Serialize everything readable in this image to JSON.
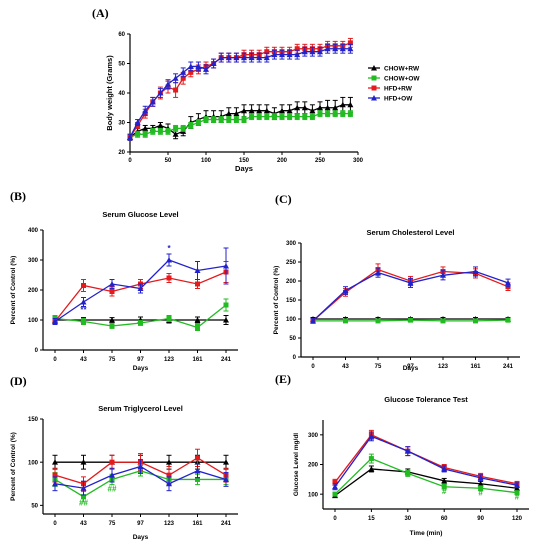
{
  "colors": {
    "CHOW+RW": "#000000",
    "CHOW+OW": "#22bb22",
    "HFD+RW": "#e41a1c",
    "HFD+OW": "#2222cc"
  },
  "chart_data": [
    {
      "id": "A",
      "type": "line",
      "panel_label": "(A)",
      "title": "",
      "xlabel": "Days",
      "ylabel": "Body weight (Grams)",
      "xlim": [
        0,
        300
      ],
      "ylim": [
        20,
        60
      ],
      "xticks": [
        0,
        50,
        100,
        150,
        200,
        250,
        300
      ],
      "yticks": [
        20,
        30,
        40,
        50,
        60
      ],
      "legend_position": "right",
      "series": [
        {
          "name": "CHOW+RW",
          "x": [
            0,
            10,
            20,
            30,
            40,
            50,
            60,
            70,
            80,
            90,
            100,
            110,
            120,
            130,
            140,
            150,
            160,
            170,
            180,
            190,
            200,
            210,
            220,
            230,
            240,
            250,
            260,
            270,
            280,
            290
          ],
          "values": [
            25,
            27,
            28,
            28,
            29,
            28,
            26,
            27,
            30,
            31,
            32,
            32,
            32,
            33,
            33,
            34,
            34,
            34,
            34,
            33,
            34,
            34,
            35,
            35,
            34,
            35,
            35,
            35,
            36,
            36
          ],
          "err": [
            1,
            1,
            1,
            1,
            1,
            1.5,
            1.5,
            1.5,
            2,
            2,
            2,
            2,
            2,
            2,
            2,
            2,
            2,
            2,
            2,
            2,
            2,
            2,
            2,
            2,
            2,
            2,
            2.5,
            2.5,
            2.5,
            2.5
          ]
        },
        {
          "name": "CHOW+OW",
          "x": [
            0,
            10,
            20,
            30,
            40,
            50,
            60,
            70,
            80,
            90,
            100,
            110,
            120,
            130,
            140,
            150,
            160,
            170,
            180,
            190,
            200,
            210,
            220,
            230,
            240,
            250,
            260,
            270,
            280,
            290
          ],
          "values": [
            25,
            26,
            26,
            27,
            27,
            27,
            28,
            28,
            29,
            30,
            31,
            31,
            31,
            31,
            31,
            31,
            32,
            32,
            32,
            32,
            32,
            32,
            32,
            32,
            32,
            33,
            33,
            33,
            33,
            33
          ],
          "err": [
            1,
            1,
            1,
            1,
            1,
            1,
            1,
            1,
            1,
            1,
            1,
            1,
            1,
            1,
            1,
            1,
            1,
            1,
            1,
            1,
            1,
            1,
            1,
            1,
            1,
            1,
            1,
            1,
            1,
            1
          ]
        },
        {
          "name": "HFD+RW",
          "x": [
            0,
            10,
            20,
            30,
            40,
            50,
            60,
            70,
            80,
            90,
            100,
            110,
            120,
            130,
            140,
            150,
            160,
            170,
            180,
            190,
            200,
            210,
            220,
            230,
            240,
            250,
            260,
            270,
            280,
            290
          ],
          "values": [
            25,
            29,
            33,
            37,
            40,
            42,
            41,
            45,
            47,
            48,
            49,
            50,
            52,
            52,
            52,
            53,
            53,
            53,
            54,
            54,
            54,
            54,
            55,
            55,
            55,
            55,
            56,
            56,
            56,
            57
          ],
          "err": [
            1,
            1,
            1.5,
            1.5,
            2,
            2,
            2.5,
            2,
            1.5,
            1.5,
            1.5,
            1.5,
            1.5,
            1.5,
            1.5,
            1.5,
            1.5,
            1.5,
            1.5,
            1.5,
            1.5,
            1.5,
            1.5,
            1.5,
            1.5,
            1.5,
            1.5,
            1.5,
            1.5,
            1.5
          ]
        },
        {
          "name": "HFD+OW",
          "x": [
            0,
            10,
            20,
            30,
            40,
            50,
            60,
            70,
            80,
            90,
            100,
            110,
            120,
            130,
            140,
            150,
            160,
            170,
            180,
            190,
            200,
            210,
            220,
            230,
            240,
            250,
            260,
            270,
            280,
            290
          ],
          "values": [
            25,
            30,
            34,
            37,
            40,
            43,
            45,
            47,
            49,
            49,
            48,
            50,
            52,
            52,
            52,
            52,
            52,
            52,
            52,
            53,
            53,
            53,
            53,
            54,
            54,
            54,
            55,
            55,
            55,
            55
          ],
          "err": [
            1,
            1,
            1.5,
            1.5,
            1.5,
            1.5,
            1.5,
            1.5,
            1.5,
            1.5,
            1.5,
            1.5,
            1.5,
            1.5,
            1.5,
            1.5,
            1.5,
            1.5,
            1.5,
            1.5,
            1.5,
            1.5,
            1.5,
            1.5,
            1.5,
            1.5,
            1.5,
            1.5,
            1.5,
            1.5
          ]
        }
      ],
      "annotations": []
    },
    {
      "id": "B",
      "type": "line",
      "panel_label": "(B)",
      "title": "Serum Glucose Level",
      "xlabel": "Days",
      "ylabel": "Percent of Control (%)",
      "categories": [
        "0",
        "43",
        "75",
        "97",
        "123",
        "161",
        "241"
      ],
      "ylim": [
        0,
        400
      ],
      "yticks": [
        0,
        100,
        200,
        300,
        400
      ],
      "series": [
        {
          "name": "CHOW+RW",
          "values": [
            100,
            100,
            100,
            100,
            100,
            100,
            100
          ],
          "err": [
            8,
            8,
            8,
            10,
            10,
            10,
            15
          ]
        },
        {
          "name": "CHOW+OW",
          "values": [
            105,
            95,
            80,
            90,
            105,
            75,
            150
          ],
          "err": [
            10,
            10,
            8,
            8,
            10,
            10,
            20
          ]
        },
        {
          "name": "HFD+RW",
          "values": [
            95,
            215,
            195,
            220,
            240,
            220,
            260
          ],
          "err": [
            10,
            20,
            15,
            15,
            15,
            15,
            35
          ]
        },
        {
          "name": "HFD+OW",
          "values": [
            95,
            160,
            220,
            205,
            300,
            265,
            280
          ],
          "err": [
            10,
            15,
            15,
            15,
            20,
            30,
            60
          ]
        }
      ],
      "annotations": [
        {
          "cat": "123",
          "y": 330,
          "text": "*",
          "color": "#2222cc"
        },
        {
          "cat": "43",
          "y": 125,
          "text": "**",
          "color": "#2222cc"
        }
      ]
    },
    {
      "id": "C",
      "type": "line",
      "panel_label": "(C)",
      "title": "Serum Cholesterol Level",
      "xlabel": "Days",
      "ylabel": "Percent of Control (%)",
      "categories": [
        "0",
        "43",
        "75",
        "97",
        "123",
        "161",
        "241"
      ],
      "ylim": [
        0,
        300
      ],
      "yticks": [
        0,
        50,
        100,
        150,
        200,
        250,
        300
      ],
      "series": [
        {
          "name": "CHOW+RW",
          "values": [
            100,
            100,
            100,
            100,
            100,
            100,
            100
          ],
          "err": [
            4,
            4,
            4,
            4,
            4,
            4,
            4
          ]
        },
        {
          "name": "CHOW+OW",
          "values": [
            95,
            95,
            95,
            97,
            95,
            95,
            97
          ],
          "err": [
            4,
            4,
            4,
            4,
            4,
            4,
            4
          ]
        },
        {
          "name": "HFD+RW",
          "values": [
            95,
            170,
            230,
            200,
            225,
            220,
            185
          ],
          "err": [
            6,
            10,
            15,
            12,
            12,
            12,
            10
          ]
        },
        {
          "name": "HFD+OW",
          "values": [
            95,
            175,
            222,
            195,
            215,
            225,
            195
          ],
          "err": [
            6,
            10,
            12,
            12,
            12,
            12,
            10
          ]
        }
      ],
      "annotations": []
    },
    {
      "id": "D",
      "type": "line",
      "panel_label": "(D)",
      "title": "Serum Triglycerol Level",
      "xlabel": "Days",
      "ylabel": "Percent of Control (%)",
      "categories": [
        "0",
        "43",
        "75",
        "97",
        "123",
        "161",
        "241"
      ],
      "ylim": [
        40,
        150
      ],
      "yticks": [
        50,
        100,
        150
      ],
      "series": [
        {
          "name": "CHOW+RW",
          "values": [
            100,
            100,
            100,
            100,
            100,
            100,
            100
          ],
          "err": [
            8,
            8,
            8,
            8,
            8,
            8,
            8
          ]
        },
        {
          "name": "CHOW+OW",
          "values": [
            80,
            60,
            80,
            90,
            80,
            80,
            80
          ],
          "err": [
            8,
            6,
            6,
            6,
            6,
            6,
            6
          ]
        },
        {
          "name": "HFD+RW",
          "values": [
            85,
            75,
            100,
            100,
            85,
            105,
            85
          ],
          "err": [
            8,
            8,
            8,
            10,
            10,
            10,
            8
          ]
        },
        {
          "name": "HFD+OW",
          "values": [
            75,
            70,
            85,
            95,
            75,
            90,
            80
          ],
          "err": [
            8,
            8,
            8,
            8,
            8,
            8,
            8
          ]
        }
      ],
      "annotations": [
        {
          "cat": "43",
          "y": 50,
          "text": "##",
          "color": "#22bb22"
        },
        {
          "cat": "75",
          "y": 66,
          "text": "##",
          "color": "#22bb22"
        }
      ]
    },
    {
      "id": "E",
      "type": "line",
      "panel_label": "(E)",
      "title": "Glucose Tolerance Test",
      "xlabel": "Time (min)",
      "ylabel": "Glucose Level mg/dl",
      "categories": [
        "0",
        "15",
        "30",
        "60",
        "90",
        "120"
      ],
      "ylim": [
        50,
        350
      ],
      "yticks": [
        100,
        200,
        300
      ],
      "series": [
        {
          "name": "CHOW+RW",
          "values": [
            95,
            185,
            175,
            145,
            135,
            120
          ],
          "err": [
            6,
            10,
            10,
            8,
            8,
            6
          ]
        },
        {
          "name": "CHOW+OW",
          "values": [
            100,
            220,
            170,
            125,
            120,
            105
          ],
          "err": [
            6,
            15,
            10,
            8,
            8,
            6
          ]
        },
        {
          "name": "HFD+RW",
          "values": [
            140,
            300,
            245,
            190,
            160,
            135
          ],
          "err": [
            10,
            15,
            15,
            10,
            10,
            8
          ]
        },
        {
          "name": "HFD+OW",
          "values": [
            125,
            295,
            245,
            185,
            155,
            130
          ],
          "err": [
            10,
            15,
            15,
            10,
            10,
            8
          ]
        }
      ],
      "annotations": [
        {
          "cat": "60",
          "y": 100,
          "text": "#",
          "color": "#22bb22"
        },
        {
          "cat": "90",
          "y": 95,
          "text": "#",
          "color": "#22bb22"
        },
        {
          "cat": "120",
          "y": 82,
          "text": "#",
          "color": "#22bb22"
        }
      ]
    }
  ]
}
